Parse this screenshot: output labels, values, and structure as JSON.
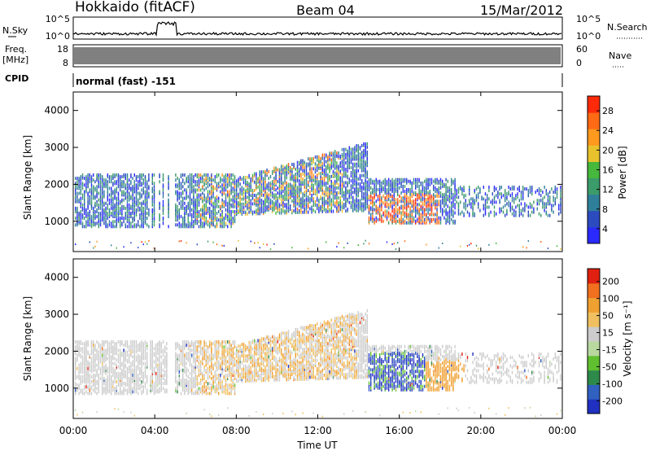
{
  "header": {
    "station": "Hokkaido (fitACF)",
    "beam": "Beam 04",
    "date": "15/Mar/2012"
  },
  "status_panels": {
    "nsky_label": "N.Sky",
    "nsky_ticks": [
      "10^5",
      "10^0"
    ],
    "nsearch_label": "N.Search",
    "nsearch_ticks": [
      "10^5",
      "10^0"
    ],
    "freq_label": "Freq.",
    "freq_unit": "[MHz]",
    "freq_ticks": [
      "18",
      "8"
    ],
    "nave_label": "Nave",
    "nave_ticks": [
      "60",
      "0"
    ],
    "cpid_label": "CPID",
    "cpid_value": "normal (fast) -151"
  },
  "chart_data": [
    {
      "type": "heatmap",
      "name": "power",
      "ylabel": "Slant Range [km]",
      "yticks": [
        "4000",
        "3000",
        "2000",
        "1000"
      ],
      "ylim": [
        180,
        4500
      ],
      "colorbar_label": "Power [dB]",
      "colorbar_ticks": [
        "28",
        "24",
        "20",
        "16",
        "12",
        "8",
        "4"
      ],
      "colors": [
        "#2a2aff",
        "#2c4bbf",
        "#2f7f9a",
        "#3c9b6a",
        "#46b83c",
        "#e8c22c",
        "#ff9a1e",
        "#ff6a14",
        "#ff2a0a"
      ]
    },
    {
      "type": "heatmap",
      "name": "velocity",
      "ylabel": "Slant Range [km]",
      "yticks": [
        "4000",
        "3000",
        "2000",
        "1000"
      ],
      "ylim": [
        180,
        4500
      ],
      "colorbar_label": "Velocity [m s⁻¹]",
      "colorbar_ticks": [
        "200",
        "100",
        "50",
        "15",
        "-15",
        "-50",
        "-100",
        "-200"
      ],
      "colors": [
        "#2030c0",
        "#3060c0",
        "#2e8a4a",
        "#60c030",
        "#b8d8a0",
        "#cccccc",
        "#f0c060",
        "#f0a030",
        "#f07020",
        "#e02010"
      ]
    }
  ],
  "x_axis": {
    "label": "Time UT",
    "ticks": [
      "00:00",
      "04:00",
      "08:00",
      "12:00",
      "16:00",
      "20:00",
      "00:00"
    ]
  }
}
